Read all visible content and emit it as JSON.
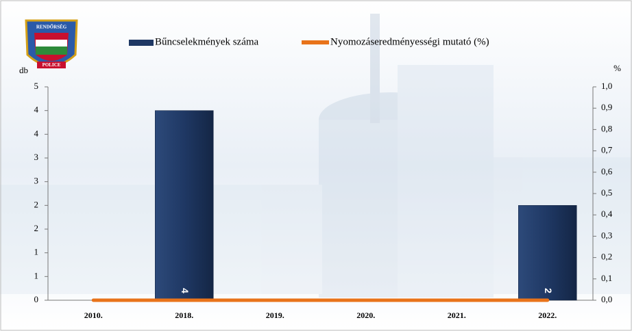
{
  "logo": {
    "top": "RENDŐRSÉG",
    "bottom": "POLICE"
  },
  "chart_data": {
    "type": "bar_line",
    "categories": [
      "2010.",
      "2018.",
      "2019.",
      "2020.",
      "2021.",
      "2022."
    ],
    "series": [
      {
        "name": "Bűncselekmények száma",
        "color": "#1f3864",
        "type": "bar",
        "values": [
          0,
          4,
          0,
          0,
          0,
          2
        ],
        "value_labels": [
          null,
          "4",
          null,
          null,
          null,
          "2"
        ]
      },
      {
        "name": "Nyomozáseredményességi mutató (%)",
        "color": "#e8731a",
        "type": "line",
        "axis": "y2",
        "values": [
          0,
          0,
          0,
          0,
          0,
          0
        ]
      }
    ],
    "ylabel": "db",
    "y2label": "%",
    "ylim": [
      0,
      4.5
    ],
    "yticks": [
      0,
      {
        "value": 0.5,
        "label": "1"
      },
      1,
      {
        "value": 1.5,
        "label": "2"
      },
      2,
      {
        "value": 2.5,
        "label": "3"
      },
      3,
      {
        "value": 3.5,
        "label": "4"
      },
      4,
      {
        "value": 4.5,
        "label": "5"
      }
    ],
    "y2lim": [
      0,
      1
    ],
    "y2ticks": [
      {
        "value": 0,
        "label": "0,0"
      },
      {
        "value": 0.1,
        "label": "0,1"
      },
      {
        "value": 0.2,
        "label": "0,2"
      },
      {
        "value": 0.3,
        "label": "0,3"
      },
      {
        "value": 0.4,
        "label": "0,4"
      },
      {
        "value": 0.5,
        "label": "0,5"
      },
      {
        "value": 0.6,
        "label": "0,6"
      },
      {
        "value": 0.7,
        "label": "0,7"
      },
      {
        "value": 0.8,
        "label": "0,8"
      },
      {
        "value": 0.9,
        "label": "0,9"
      },
      {
        "value": 1,
        "label": "1,0"
      }
    ],
    "legend": "top"
  }
}
